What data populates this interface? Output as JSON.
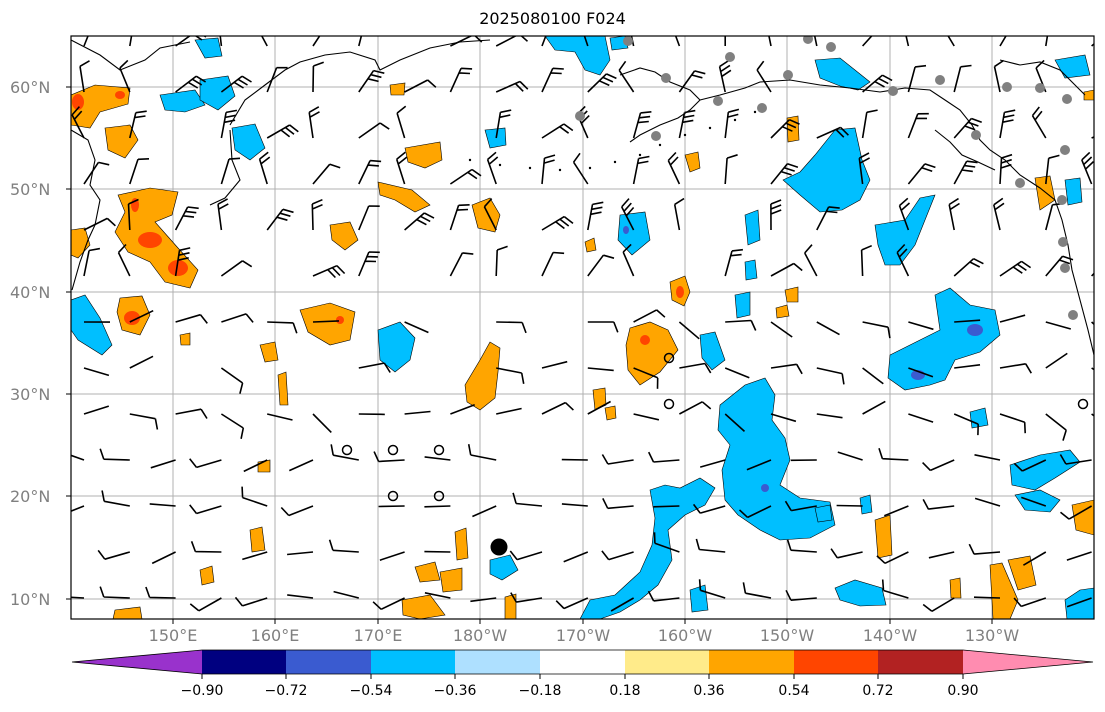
{
  "title": "2025080100 F024",
  "lat_labels": [
    "60°N",
    "50°N",
    "40°N",
    "30°N",
    "20°N",
    "10°N"
  ],
  "lon_labels": [
    "150°E",
    "160°E",
    "170°E",
    "180°W",
    "170°W",
    "160°W",
    "150°W",
    "140°W",
    "130°W"
  ],
  "colorbar": {
    "colors": [
      "#9932cc",
      "#000080",
      "#3a5bd0",
      "#00bfff",
      "#aee0ff",
      "#ffffff",
      "#ffeb8a",
      "#ffa500",
      "#ff4500",
      "#b22222",
      "#ff8cb0"
    ],
    "tick_labels": [
      "−0.90",
      "−0.72",
      "−0.54",
      "−0.36",
      "−0.18",
      "0.18",
      "0.36",
      "0.54",
      "0.72",
      "0.90"
    ]
  },
  "colors": {
    "positive_fill": "#ffa500",
    "positive_strong": "#ff4500",
    "negative_fill": "#00bfff",
    "negative_strong": "#3a5bd0",
    "coastline": "#000000",
    "gridline": "#b0b0b0",
    "station_marker": "#808080"
  }
}
